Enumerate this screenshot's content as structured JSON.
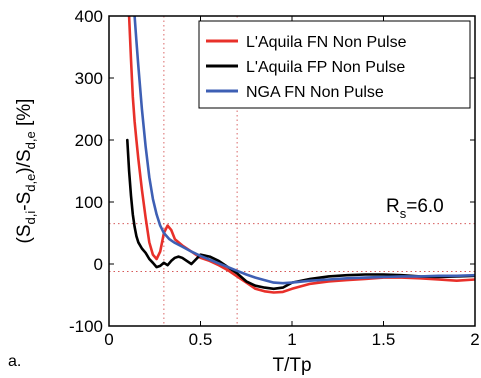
{
  "panel_label": "a.",
  "chart_data": {
    "type": "line",
    "xlabel": "T/Tp",
    "ylabel_parts": [
      "(S",
      "d,i",
      "-S",
      "d,e",
      ")/S",
      "d,e",
      " [%]"
    ],
    "xlim": [
      0,
      2
    ],
    "ylim": [
      -100,
      400
    ],
    "x_ticks": [
      0,
      0.5,
      1,
      1.5,
      2
    ],
    "x_tick_labels": [
      "0",
      "0.5",
      "1",
      "1.5",
      "2"
    ],
    "y_ticks": [
      -100,
      0,
      100,
      200,
      300,
      400
    ],
    "y_tick_labels": [
      "-100",
      "0",
      "100",
      "200",
      "300",
      "400"
    ],
    "legend_position": "top-right",
    "annotation": {
      "main": "R",
      "sub": "s",
      "rest": "=6.0"
    },
    "reference_lines": {
      "vertical_x": [
        0.3,
        0.7
      ],
      "horizontal_y": [
        65,
        -12
      ],
      "color": "#d04040"
    },
    "series": [
      {
        "name": "L'Aquila FN Non Pulse",
        "color": "#e8302a",
        "x": [
          0.11,
          0.12,
          0.13,
          0.14,
          0.15,
          0.16,
          0.18,
          0.2,
          0.22,
          0.24,
          0.26,
          0.28,
          0.3,
          0.32,
          0.34,
          0.36,
          0.4,
          0.45,
          0.5,
          0.55,
          0.6,
          0.65,
          0.7,
          0.75,
          0.8,
          0.85,
          0.9,
          0.95,
          1.0,
          1.1,
          1.2,
          1.3,
          1.4,
          1.5,
          1.6,
          1.7,
          1.8,
          1.9,
          2.0
        ],
        "y": [
          400,
          330,
          270,
          230,
          200,
          170,
          120,
          75,
          35,
          15,
          8,
          20,
          50,
          62,
          55,
          40,
          30,
          20,
          10,
          5,
          -2,
          -10,
          -20,
          -30,
          -40,
          -44,
          -46,
          -45,
          -40,
          -32,
          -28,
          -26,
          -24,
          -22,
          -22,
          -23,
          -25,
          -27,
          -25
        ]
      },
      {
        "name": "L'Aquila FP Non Pulse",
        "color": "#000000",
        "x": [
          0.1,
          0.11,
          0.12,
          0.13,
          0.14,
          0.15,
          0.16,
          0.18,
          0.2,
          0.22,
          0.24,
          0.26,
          0.28,
          0.3,
          0.32,
          0.34,
          0.36,
          0.38,
          0.4,
          0.45,
          0.5,
          0.55,
          0.6,
          0.65,
          0.7,
          0.75,
          0.8,
          0.85,
          0.9,
          0.95,
          1.0,
          1.1,
          1.2,
          1.3,
          1.4,
          1.5,
          1.6,
          1.7,
          1.8,
          1.9,
          2.0
        ],
        "y": [
          200,
          150,
          110,
          80,
          60,
          45,
          35,
          25,
          18,
          8,
          2,
          -5,
          -3,
          2,
          -2,
          5,
          10,
          12,
          10,
          0,
          15,
          12,
          5,
          -5,
          -15,
          -28,
          -35,
          -38,
          -40,
          -38,
          -30,
          -24,
          -20,
          -18,
          -17,
          -17,
          -18,
          -20,
          -21,
          -20,
          -19
        ]
      },
      {
        "name": "NGA FN Non Pulse",
        "color": "#3e5fb4",
        "x": [
          0.14,
          0.15,
          0.16,
          0.18,
          0.2,
          0.22,
          0.24,
          0.26,
          0.28,
          0.3,
          0.33,
          0.36,
          0.4,
          0.45,
          0.5,
          0.55,
          0.6,
          0.65,
          0.7,
          0.75,
          0.8,
          0.85,
          0.9,
          0.95,
          1.0,
          1.1,
          1.2,
          1.3,
          1.4,
          1.5,
          1.6,
          1.7,
          1.8,
          1.9,
          2.0
        ],
        "y": [
          400,
          360,
          320,
          250,
          190,
          140,
          105,
          80,
          62,
          50,
          40,
          34,
          28,
          20,
          13,
          7,
          1,
          -5,
          -11,
          -17,
          -22,
          -26,
          -30,
          -31,
          -30,
          -27,
          -25,
          -23,
          -22,
          -21,
          -20,
          -20,
          -19,
          -19,
          -18
        ]
      }
    ]
  }
}
